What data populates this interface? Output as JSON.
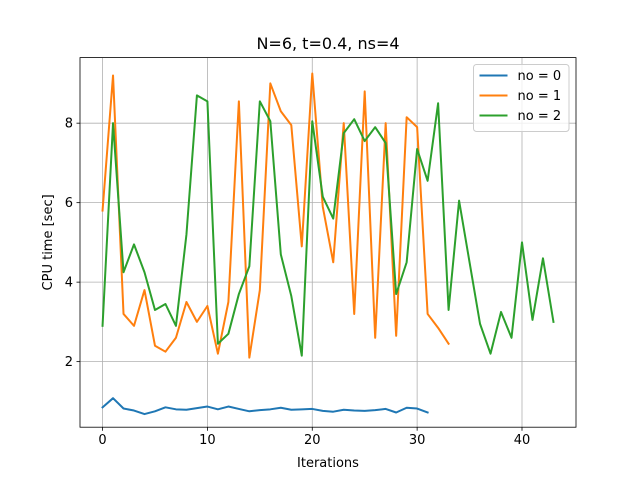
{
  "chart_data": {
    "type": "line",
    "title": "N=6, t=0.4, ns=4",
    "xlabel": "Iterations",
    "ylabel": "CPU time [sec]",
    "xlim": [
      -2.15,
      45.15
    ],
    "ylim": [
      0.35,
      9.65
    ],
    "xticks": [
      0,
      10,
      20,
      30,
      40
    ],
    "yticks": [
      2,
      4,
      6,
      8
    ],
    "grid": true,
    "legend_position": "top-right",
    "series": [
      {
        "name": "no = 0",
        "color": "#1f77b4",
        "x": [
          0,
          1,
          2,
          3,
          4,
          5,
          6,
          7,
          8,
          9,
          10,
          11,
          12,
          13,
          14,
          15,
          16,
          17,
          18,
          19,
          20,
          21,
          22,
          23,
          24,
          25,
          26,
          27,
          28,
          29,
          30,
          31
        ],
        "y": [
          0.85,
          1.08,
          0.82,
          0.77,
          0.68,
          0.75,
          0.85,
          0.8,
          0.79,
          0.83,
          0.87,
          0.8,
          0.87,
          0.81,
          0.75,
          0.78,
          0.8,
          0.84,
          0.79,
          0.8,
          0.81,
          0.76,
          0.74,
          0.79,
          0.77,
          0.76,
          0.78,
          0.81,
          0.72,
          0.84,
          0.82,
          0.72
        ]
      },
      {
        "name": "no = 1",
        "color": "#ff7f0e",
        "x": [
          0,
          1,
          2,
          3,
          4,
          5,
          6,
          7,
          8,
          9,
          10,
          11,
          12,
          13,
          14,
          15,
          16,
          17,
          18,
          19,
          20,
          21,
          22,
          23,
          24,
          25,
          26,
          27,
          28,
          29,
          30,
          31,
          32,
          33
        ],
        "y": [
          5.8,
          9.2,
          3.2,
          2.9,
          3.8,
          2.4,
          2.25,
          2.6,
          3.5,
          3.0,
          3.4,
          2.2,
          3.5,
          8.55,
          2.1,
          3.8,
          9.0,
          8.3,
          7.95,
          4.9,
          9.25,
          5.9,
          4.5,
          8.0,
          3.2,
          8.8,
          2.6,
          8.0,
          2.65,
          8.15,
          7.9,
          3.2,
          2.85,
          2.45
        ]
      },
      {
        "name": "no = 2",
        "color": "#2ca02c",
        "x": [
          0,
          1,
          2,
          3,
          4,
          5,
          6,
          7,
          8,
          9,
          10,
          11,
          12,
          13,
          14,
          15,
          16,
          17,
          18,
          19,
          20,
          21,
          22,
          23,
          24,
          25,
          26,
          27,
          28,
          29,
          30,
          31,
          32,
          33,
          34,
          35,
          36,
          37,
          38,
          39,
          40,
          41,
          42,
          43
        ],
        "y": [
          2.9,
          8.0,
          4.25,
          4.95,
          4.25,
          3.3,
          3.45,
          2.9,
          5.2,
          8.7,
          8.55,
          2.45,
          2.7,
          3.7,
          4.4,
          8.55,
          8.05,
          4.7,
          3.65,
          2.15,
          8.05,
          6.15,
          5.6,
          7.75,
          8.1,
          7.55,
          7.9,
          7.5,
          3.7,
          4.5,
          7.35,
          6.55,
          8.5,
          3.3,
          6.05,
          4.5,
          2.95,
          2.2,
          3.25,
          2.6,
          5.0,
          3.05,
          4.6,
          3.0
        ]
      }
    ]
  }
}
